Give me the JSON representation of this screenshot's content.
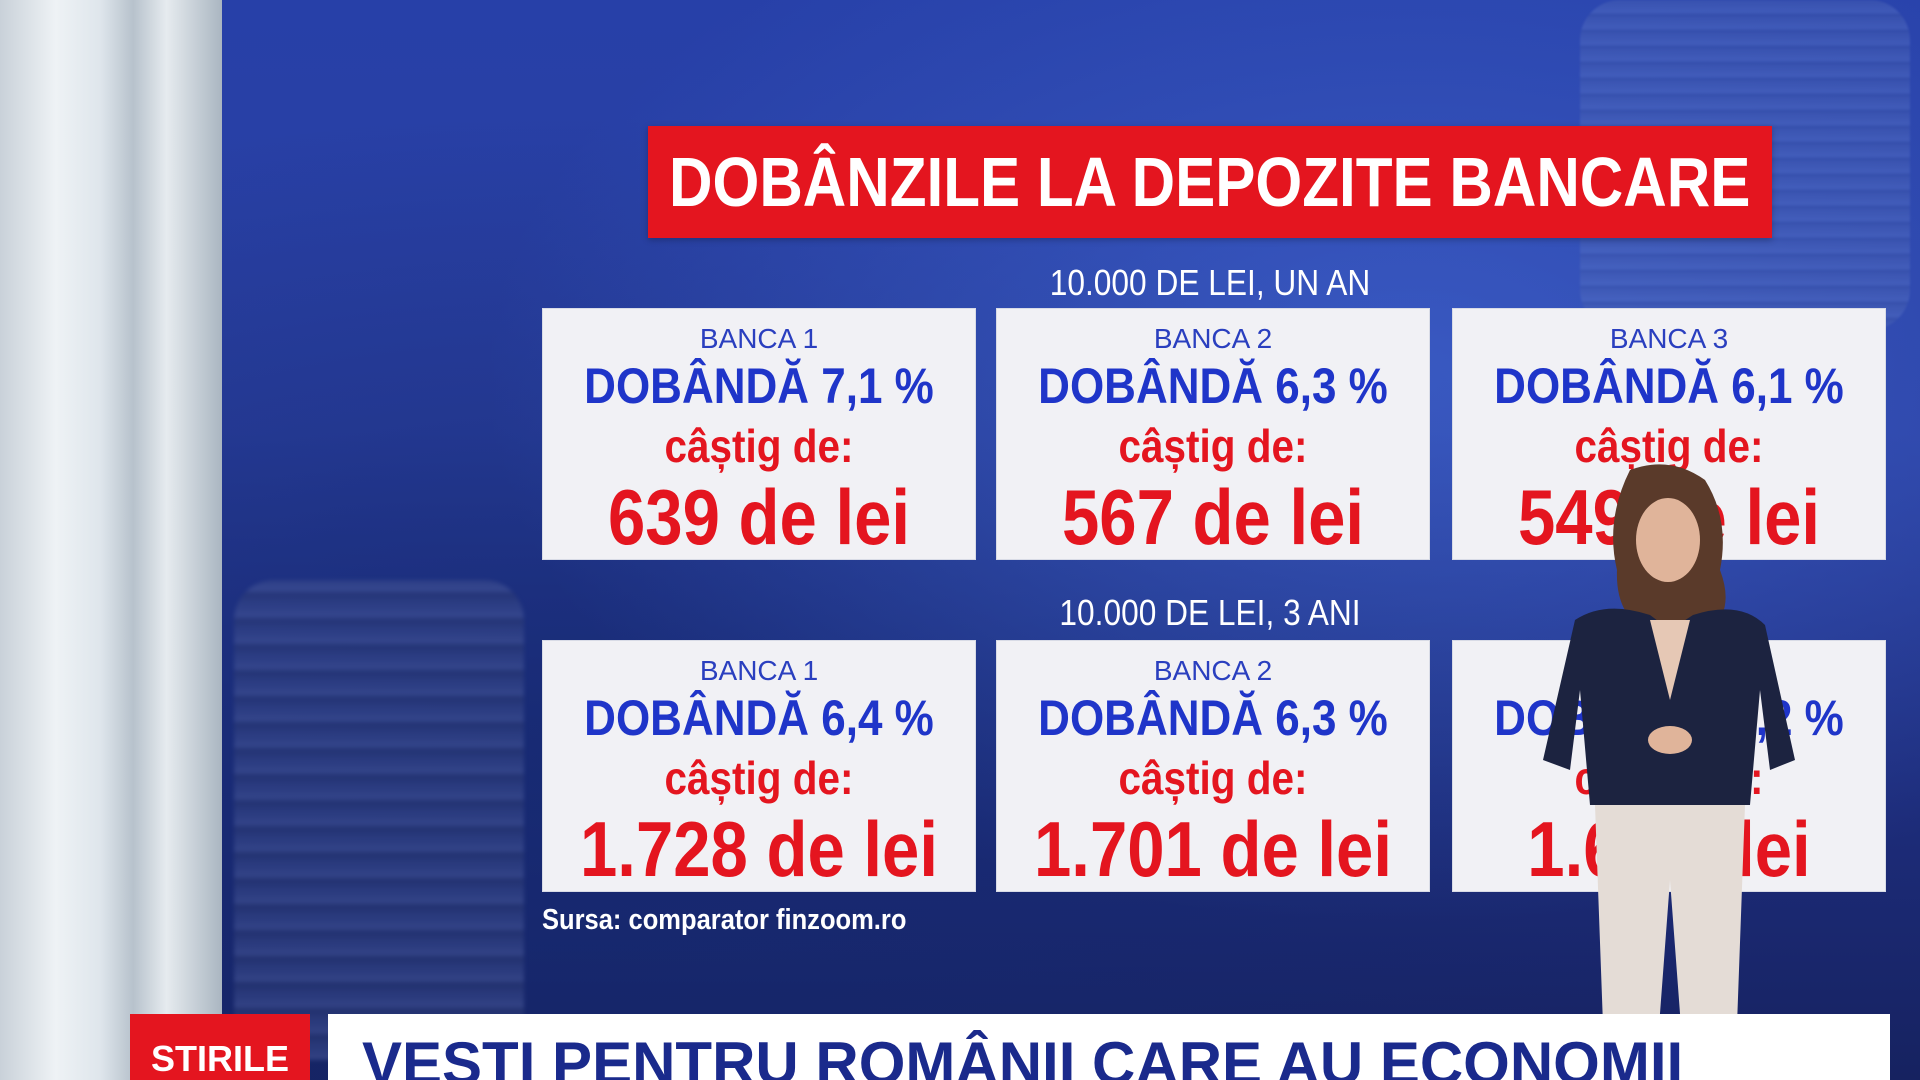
{
  "title": "DOBÂNZILE LA DEPOZITE BANCARE",
  "sections": [
    {
      "subtitle": "10.000 DE LEI, UN AN",
      "cards": [
        {
          "bank": "BANCA 1",
          "rate": "DOBÂNDĂ 7,1 %",
          "gain_label": "câștig de:",
          "amount": "639 de lei"
        },
        {
          "bank": "BANCA 2",
          "rate": "DOBÂNDĂ 6,3 %",
          "gain_label": "câștig de:",
          "amount": "567 de lei"
        },
        {
          "bank": "BANCA 3",
          "rate": "DOBÂNDĂ 6,1 %",
          "gain_label": "câștig de:",
          "amount": "549 de lei"
        }
      ]
    },
    {
      "subtitle": "10.000 DE LEI, 3 ANI",
      "cards": [
        {
          "bank": "BANCA 1",
          "rate": "DOBÂNDĂ 6,4 %",
          "gain_label": "câștig de:",
          "amount": "1.728 de lei"
        },
        {
          "bank": "BANCA 2",
          "rate": "DOBÂNDĂ 6,3 %",
          "gain_label": "câștig de:",
          "amount": "1.701 de lei"
        },
        {
          "bank": "",
          "rate": "DOBÂNDĂ 6,2 %",
          "gain_label": "câștig de:",
          "amount": "1.6 de lei"
        }
      ]
    }
  ],
  "source": "Sursa: comparator finzoom.ro",
  "ticker": {
    "brand": "STIRILE",
    "headline": "VESTI PENTRU ROMÂNII CARE AU ECONOMII"
  },
  "colors": {
    "accent_red": "#e4151f",
    "rate_blue": "#1f35c9",
    "screen_blue": "#2740a8"
  }
}
